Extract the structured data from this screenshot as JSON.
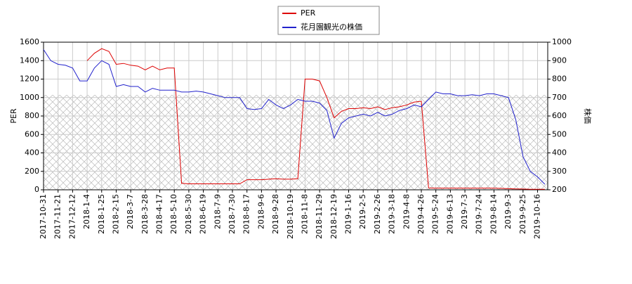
{
  "chart_data": {
    "type": "line",
    "categories": [
      "2017-10-31",
      null,
      "2017-11-21",
      null,
      "2017-12-12",
      null,
      "2018-1-4",
      null,
      "2018-1-25",
      null,
      "2018-2-15",
      null,
      "2018-3-7",
      null,
      "2018-3-28",
      null,
      "2018-4-17",
      null,
      "2018-5-10",
      null,
      "2018-5-30",
      null,
      "2018-6-19",
      null,
      "2018-7-9",
      null,
      "2018-7-30",
      null,
      "2018-8-17",
      null,
      "2018-9-6",
      null,
      "2018-9-28",
      null,
      "2018-10-19",
      null,
      "2018-11-8",
      null,
      "2018-11-29",
      null,
      "2018-12-19",
      null,
      "2019-1-16",
      null,
      "2019-2-5",
      null,
      "2019-2-26",
      null,
      "2019-3-18",
      null,
      "2019-4-8",
      null,
      "2019-4-26",
      null,
      "2019-5-24",
      null,
      "2019-6-13",
      null,
      "2019-7-3",
      null,
      "2019-7-24",
      null,
      "2019-8-14",
      null,
      "2019-9-3",
      null,
      "2019-9-25",
      null,
      "2019-10-16",
      null
    ],
    "series": [
      {
        "name": "PER",
        "color": "#dd0000",
        "values": [
          null,
          null,
          null,
          null,
          null,
          null,
          1400,
          1480,
          1530,
          1500,
          1360,
          1370,
          1350,
          1340,
          1300,
          1340,
          1300,
          1320,
          1320,
          70,
          65,
          65,
          65,
          65,
          65,
          65,
          65,
          65,
          110,
          110,
          110,
          115,
          120,
          115,
          115,
          120,
          1200,
          1200,
          1180,
          1000,
          780,
          850,
          880,
          880,
          890,
          880,
          900,
          870,
          890,
          900,
          920,
          950,
          960,
          20,
          18,
          18,
          18,
          18,
          18,
          18,
          18,
          18,
          18,
          15,
          12,
          10,
          8,
          6,
          5,
          5
        ]
      },
      {
        "name": "花月園観光の株価",
        "color": "#2222cc",
        "axis": "y2",
        "values": [
          960,
          900,
          880,
          875,
          860,
          790,
          790,
          860,
          900,
          880,
          760,
          770,
          760,
          760,
          730,
          750,
          740,
          740,
          740,
          730,
          730,
          735,
          730,
          720,
          710,
          700,
          700,
          700,
          640,
          635,
          640,
          690,
          660,
          640,
          660,
          690,
          680,
          680,
          670,
          630,
          480,
          560,
          590,
          600,
          610,
          600,
          620,
          600,
          610,
          630,
          640,
          660,
          650,
          690,
          730,
          720,
          720,
          710,
          710,
          715,
          710,
          720,
          720,
          710,
          700,
          580,
          380,
          300,
          270,
          230
        ]
      }
    ],
    "y_label": "PER",
    "y2_label": "株価",
    "ylim": [
      0,
      1600
    ],
    "yticks": [
      0,
      200,
      400,
      600,
      800,
      1000,
      1200,
      1400,
      1600
    ],
    "y2lim": [
      200,
      1000
    ],
    "y2ticks": [
      200,
      300,
      400,
      500,
      600,
      700,
      800,
      900,
      1000
    ],
    "grid": true
  }
}
